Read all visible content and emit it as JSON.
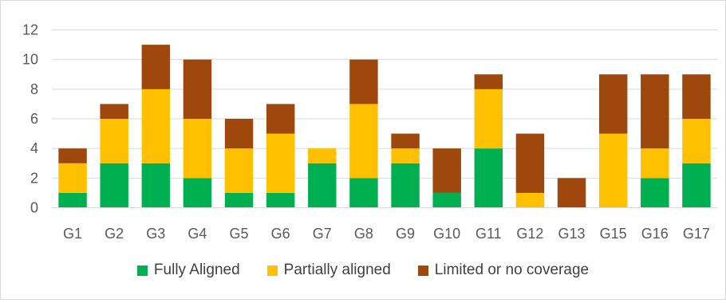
{
  "chart_data": {
    "type": "bar",
    "stacked": true,
    "categories": [
      "G1",
      "G2",
      "G3",
      "G4",
      "G5",
      "G6",
      "G7",
      "G8",
      "G9",
      "G10",
      "G11",
      "G12",
      "G13",
      "G15",
      "G16",
      "G17"
    ],
    "series": [
      {
        "name": "Fully Aligned",
        "color": "#00b050",
        "values": [
          1,
          3,
          3,
          2,
          1,
          1,
          3,
          2,
          3,
          1,
          4,
          0,
          0,
          0,
          2,
          3
        ]
      },
      {
        "name": "Partially aligned",
        "color": "#ffc000",
        "values": [
          2,
          3,
          5,
          4,
          3,
          4,
          1,
          5,
          1,
          0,
          4,
          1,
          0,
          5,
          2,
          3
        ]
      },
      {
        "name": "Limited or no coverage",
        "color": "#9e480e",
        "values": [
          1,
          1,
          3,
          4,
          2,
          2,
          0,
          3,
          1,
          3,
          1,
          4,
          2,
          4,
          5,
          3
        ]
      }
    ],
    "ylim": [
      0,
      12
    ],
    "yticks": [
      0,
      2,
      4,
      6,
      8,
      10,
      12
    ],
    "grid": true,
    "legend": "bottom",
    "title": "",
    "xlabel": "",
    "ylabel": ""
  }
}
